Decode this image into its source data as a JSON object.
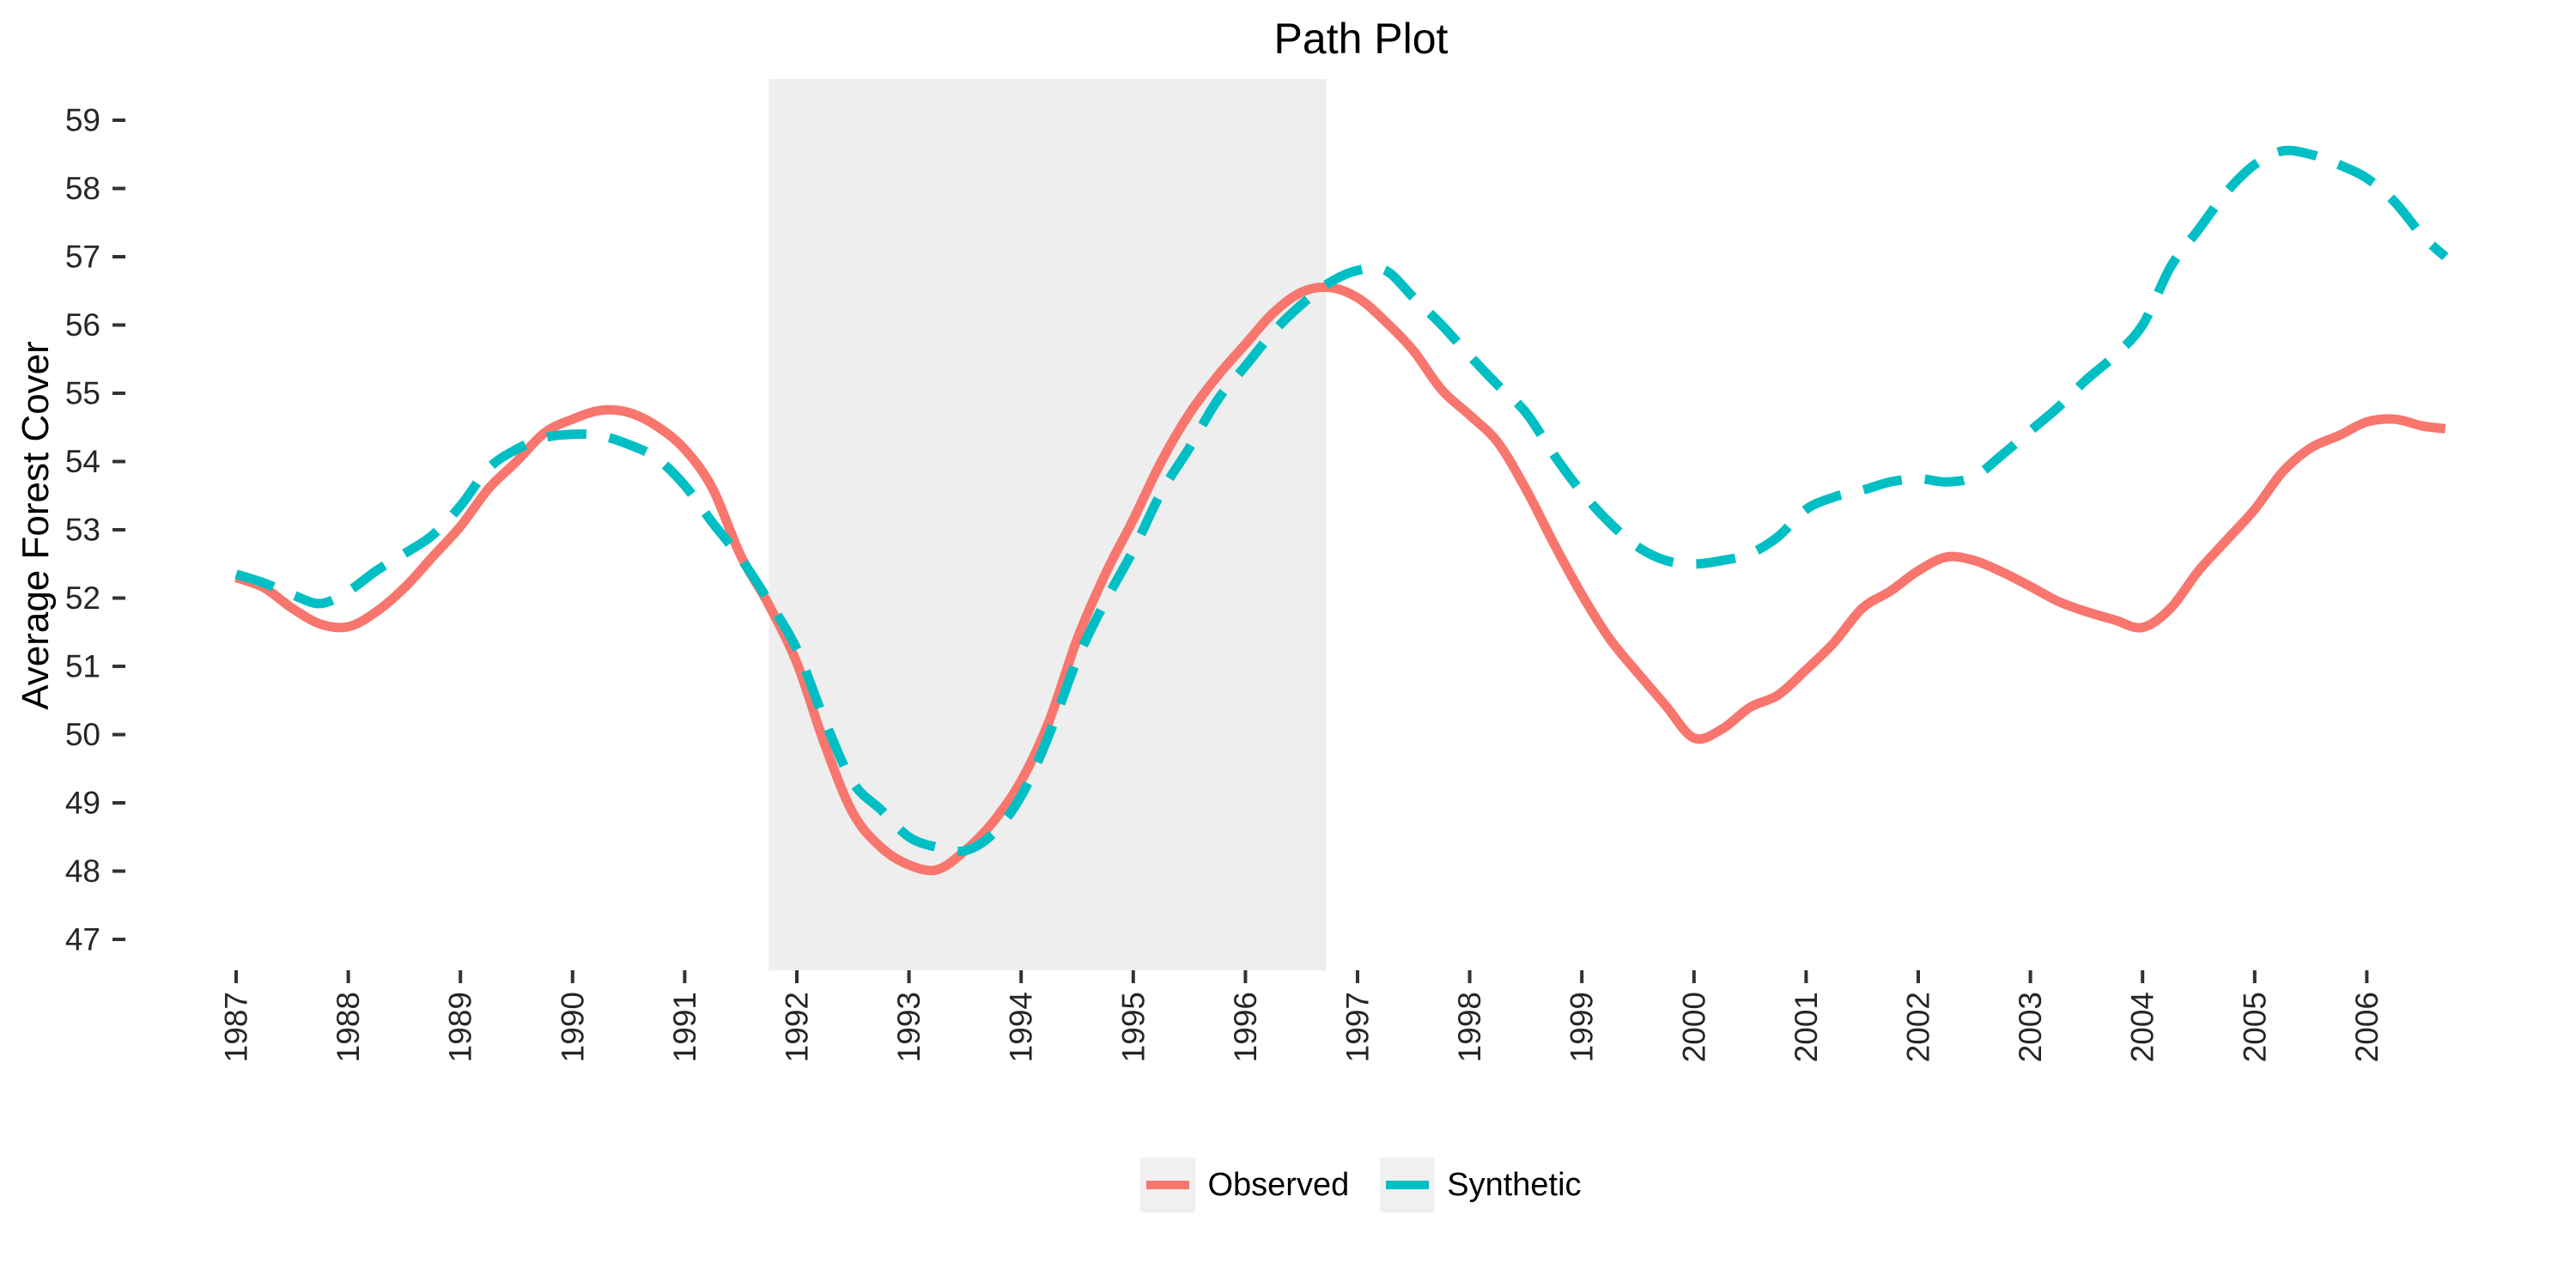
{
  "chart_data": {
    "type": "line",
    "title": "Path Plot",
    "xlabel": "",
    "ylabel": "Average Forest Cover",
    "x_ticks": [
      1987,
      1988,
      1989,
      1990,
      1991,
      1992,
      1993,
      1994,
      1995,
      1996,
      1997,
      1998,
      1999,
      2000,
      2001,
      2002,
      2003,
      2004,
      2005,
      2006
    ],
    "y_ticks": [
      47,
      48,
      49,
      50,
      51,
      52,
      53,
      54,
      55,
      56,
      57,
      58,
      59
    ],
    "x_domain": [
      1987.0,
      2006.7
    ],
    "y_domain": [
      47,
      59
    ],
    "grid": "off",
    "legend_position": "bottom",
    "axis_text_color": "#262626",
    "shaded_region": {
      "start": 1991.75,
      "end": 1996.72,
      "color": "#EEEEEE"
    },
    "series": [
      {
        "name": "Observed",
        "color": "#F8766D",
        "style": "solid",
        "points": [
          [
            1987.0,
            52.3
          ],
          [
            1987.25,
            52.15
          ],
          [
            1987.5,
            51.85
          ],
          [
            1987.75,
            51.62
          ],
          [
            1988.0,
            51.58
          ],
          [
            1988.25,
            51.8
          ],
          [
            1988.5,
            52.15
          ],
          [
            1988.75,
            52.6
          ],
          [
            1989.0,
            53.05
          ],
          [
            1989.25,
            53.6
          ],
          [
            1989.5,
            54.0
          ],
          [
            1989.75,
            54.42
          ],
          [
            1990.0,
            54.62
          ],
          [
            1990.25,
            54.75
          ],
          [
            1990.5,
            54.72
          ],
          [
            1990.75,
            54.52
          ],
          [
            1991.0,
            54.18
          ],
          [
            1991.25,
            53.6
          ],
          [
            1991.5,
            52.62
          ],
          [
            1991.75,
            51.9
          ],
          [
            1992.0,
            51.05
          ],
          [
            1992.25,
            49.85
          ],
          [
            1992.5,
            48.85
          ],
          [
            1992.75,
            48.35
          ],
          [
            1993.0,
            48.09
          ],
          [
            1993.25,
            48.02
          ],
          [
            1993.5,
            48.3
          ],
          [
            1993.75,
            48.72
          ],
          [
            1994.0,
            49.32
          ],
          [
            1994.25,
            50.2
          ],
          [
            1994.5,
            51.4
          ],
          [
            1994.75,
            52.35
          ],
          [
            1995.0,
            53.15
          ],
          [
            1995.25,
            54.0
          ],
          [
            1995.5,
            54.7
          ],
          [
            1995.75,
            55.25
          ],
          [
            1996.0,
            55.72
          ],
          [
            1996.25,
            56.18
          ],
          [
            1996.5,
            56.48
          ],
          [
            1996.75,
            56.55
          ],
          [
            1997.0,
            56.4
          ],
          [
            1997.25,
            56.05
          ],
          [
            1997.5,
            55.62
          ],
          [
            1997.75,
            55.05
          ],
          [
            1998.0,
            54.68
          ],
          [
            1998.25,
            54.28
          ],
          [
            1998.5,
            53.6
          ],
          [
            1998.75,
            52.8
          ],
          [
            1999.0,
            52.05
          ],
          [
            1999.25,
            51.4
          ],
          [
            1999.5,
            50.9
          ],
          [
            1999.75,
            50.42
          ],
          [
            2000.0,
            49.95
          ],
          [
            2000.25,
            50.08
          ],
          [
            2000.5,
            50.4
          ],
          [
            2000.75,
            50.58
          ],
          [
            2001.0,
            50.95
          ],
          [
            2001.25,
            51.35
          ],
          [
            2001.5,
            51.85
          ],
          [
            2001.75,
            52.1
          ],
          [
            2002.0,
            52.4
          ],
          [
            2002.25,
            52.6
          ],
          [
            2002.5,
            52.55
          ],
          [
            2002.75,
            52.38
          ],
          [
            2003.0,
            52.17
          ],
          [
            2003.25,
            51.95
          ],
          [
            2003.5,
            51.8
          ],
          [
            2003.75,
            51.68
          ],
          [
            2004.0,
            51.57
          ],
          [
            2004.25,
            51.85
          ],
          [
            2004.5,
            52.4
          ],
          [
            2004.75,
            52.85
          ],
          [
            2005.0,
            53.3
          ],
          [
            2005.25,
            53.85
          ],
          [
            2005.5,
            54.2
          ],
          [
            2005.75,
            54.38
          ],
          [
            2006.0,
            54.58
          ],
          [
            2006.25,
            54.62
          ],
          [
            2006.5,
            54.52
          ],
          [
            2006.7,
            54.48
          ]
        ]
      },
      {
        "name": "Synthetic",
        "color": "#00BFC4",
        "style": "dashed",
        "points": [
          [
            1987.0,
            52.35
          ],
          [
            1987.25,
            52.22
          ],
          [
            1987.5,
            52.05
          ],
          [
            1987.75,
            51.92
          ],
          [
            1988.0,
            52.1
          ],
          [
            1988.25,
            52.4
          ],
          [
            1988.5,
            52.65
          ],
          [
            1988.75,
            52.92
          ],
          [
            1989.0,
            53.35
          ],
          [
            1989.25,
            53.9
          ],
          [
            1989.5,
            54.18
          ],
          [
            1989.75,
            54.35
          ],
          [
            1990.0,
            54.4
          ],
          [
            1990.25,
            54.38
          ],
          [
            1990.5,
            54.25
          ],
          [
            1990.75,
            54.05
          ],
          [
            1991.0,
            53.65
          ],
          [
            1991.25,
            53.1
          ],
          [
            1991.5,
            52.58
          ],
          [
            1991.75,
            51.95
          ],
          [
            1992.0,
            51.25
          ],
          [
            1992.25,
            50.2
          ],
          [
            1992.5,
            49.3
          ],
          [
            1992.75,
            48.9
          ],
          [
            1993.0,
            48.5
          ],
          [
            1993.25,
            48.35
          ],
          [
            1993.5,
            48.3
          ],
          [
            1993.75,
            48.55
          ],
          [
            1994.0,
            49.1
          ],
          [
            1994.25,
            50.0
          ],
          [
            1994.5,
            51.1
          ],
          [
            1994.75,
            51.95
          ],
          [
            1995.0,
            52.7
          ],
          [
            1995.25,
            53.55
          ],
          [
            1995.5,
            54.2
          ],
          [
            1995.75,
            54.9
          ],
          [
            1996.0,
            55.4
          ],
          [
            1996.25,
            55.9
          ],
          [
            1996.5,
            56.3
          ],
          [
            1996.75,
            56.62
          ],
          [
            1997.0,
            56.8
          ],
          [
            1997.25,
            56.8
          ],
          [
            1997.5,
            56.4
          ],
          [
            1997.75,
            56.0
          ],
          [
            1998.0,
            55.55
          ],
          [
            1998.25,
            55.12
          ],
          [
            1998.5,
            54.72
          ],
          [
            1998.75,
            54.1
          ],
          [
            1999.0,
            53.55
          ],
          [
            1999.25,
            53.1
          ],
          [
            1999.5,
            52.75
          ],
          [
            1999.75,
            52.55
          ],
          [
            2000.0,
            52.5
          ],
          [
            2000.25,
            52.55
          ],
          [
            2000.5,
            52.65
          ],
          [
            2000.75,
            52.9
          ],
          [
            2001.0,
            53.3
          ],
          [
            2001.25,
            53.48
          ],
          [
            2001.5,
            53.58
          ],
          [
            2001.75,
            53.7
          ],
          [
            2002.0,
            53.75
          ],
          [
            2002.25,
            53.7
          ],
          [
            2002.5,
            53.78
          ],
          [
            2002.75,
            54.1
          ],
          [
            2003.0,
            54.45
          ],
          [
            2003.25,
            54.8
          ],
          [
            2003.5,
            55.2
          ],
          [
            2003.75,
            55.55
          ],
          [
            2004.0,
            56.0
          ],
          [
            2004.25,
            56.85
          ],
          [
            2004.5,
            57.4
          ],
          [
            2004.75,
            57.95
          ],
          [
            2005.0,
            58.35
          ],
          [
            2005.25,
            58.55
          ],
          [
            2005.5,
            58.5
          ],
          [
            2005.75,
            58.35
          ],
          [
            2006.0,
            58.15
          ],
          [
            2006.25,
            57.8
          ],
          [
            2006.5,
            57.3
          ],
          [
            2006.7,
            57.0
          ]
        ]
      }
    ]
  }
}
